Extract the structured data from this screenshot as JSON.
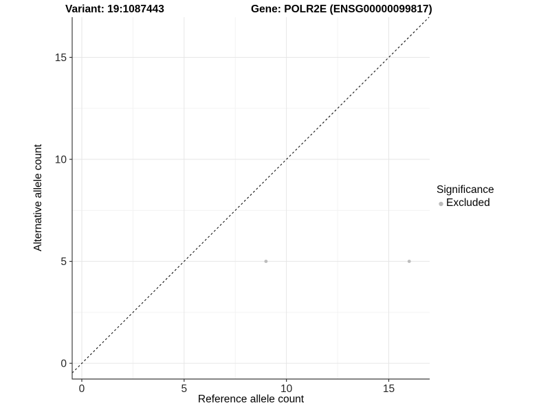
{
  "chart_data": {
    "type": "scatter",
    "title_left": "Variant: 19:1087443",
    "title_right": "Gene: POLR2E (ENSG00000099817)",
    "xlabel": "Reference allele count",
    "ylabel": "Alternative allele count",
    "xlim": [
      -0.47,
      17.0
    ],
    "ylim": [
      -0.77,
      16.97
    ],
    "x_ticks": [
      0,
      5,
      10,
      15
    ],
    "y_ticks": [
      0,
      5,
      10,
      15
    ],
    "x_minor": [
      2.5,
      7.5,
      12.5
    ],
    "y_minor": [
      2.5,
      7.5,
      12.5
    ],
    "grid": "major+minor",
    "series": [
      {
        "name": "Excluded",
        "color": "#bcbcbc",
        "points": [
          {
            "x": 9,
            "y": 5
          },
          {
            "x": 16,
            "y": 5
          }
        ]
      }
    ],
    "reference_line": {
      "type": "identity",
      "slope": 1,
      "intercept": 0,
      "linetype": "dashed",
      "color": "#111111"
    },
    "legend": {
      "title": "Significance",
      "position": "right",
      "items": [
        {
          "label": "Excluded",
          "color": "#bcbcbc"
        }
      ]
    },
    "style": {
      "grid_major": "#e6e6e6",
      "grid_minor": "#f3f3f3",
      "axis_line": "#3c3c3c",
      "tick_color": "#333333",
      "point_radius": 2.4
    }
  }
}
